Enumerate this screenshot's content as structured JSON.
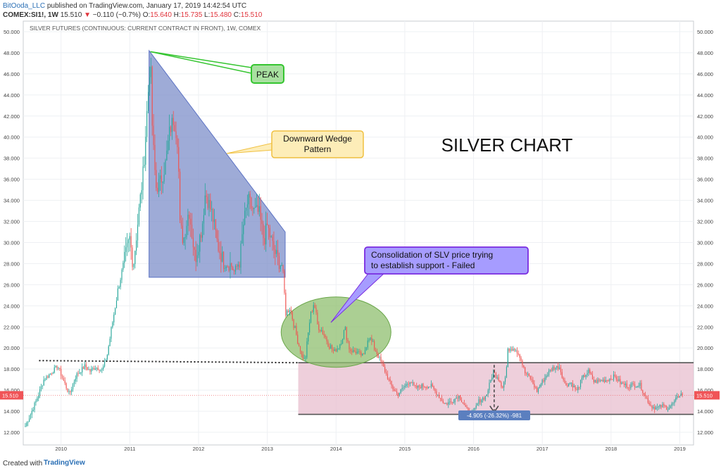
{
  "header": {
    "author": "BitOoda_LLC",
    "published": "published on TradingView.com, January 17, 2019 14:42:54 UTC",
    "symbol": "COMEX:SI1!, 1W",
    "last": "15.510",
    "change": "−0.110 (−0.7%)",
    "open_label": "O:",
    "open": "15.640",
    "high_label": "H:",
    "high": "15.735",
    "low_label": "L:",
    "low": "15.480",
    "close_label": "C:",
    "close": "15.510"
  },
  "footer": {
    "created_with": "Created with",
    "brand": "TradingView"
  },
  "colors": {
    "up": "#26a69a",
    "down": "#ef5350",
    "wedge_fill": "#7d8fc9",
    "zone_fill": "#e8bfcf",
    "circle_fill": "#8fbf6f",
    "peak_border": "#35c530",
    "wedge_note_border": "#f0c040",
    "consolidation_border": "#7a2be0",
    "price_tag": "#f05457",
    "measure_tag": "#5b7fbf"
  },
  "chart_data": {
    "type": "candlestick",
    "title": "SILVER FUTURES (CONTINUOUS: CURRENT CONTRACT IN FRONT), 1W, COMEX",
    "xlabel": "",
    "ylabel": "",
    "x_range": [
      2009.45,
      2019.2
    ],
    "ylim": [
      10.8,
      51.0
    ],
    "y_ticks": [
      "12.000",
      "14.000",
      "16.000",
      "18.000",
      "20.000",
      "22.000",
      "24.000",
      "26.000",
      "28.000",
      "30.000",
      "32.000",
      "34.000",
      "36.000",
      "38.000",
      "40.000",
      "42.000",
      "44.000",
      "46.000",
      "48.000",
      "50.000"
    ],
    "x_ticks": [
      "2010",
      "2011",
      "2012",
      "2013",
      "2014",
      "2015",
      "2016",
      "2017",
      "2018",
      "2019"
    ],
    "current_price": "15.510",
    "price_path": [
      [
        2009.48,
        12.6
      ],
      [
        2009.55,
        13.6
      ],
      [
        2009.65,
        15.2
      ],
      [
        2009.75,
        17.0
      ],
      [
        2009.85,
        17.6
      ],
      [
        2009.95,
        18.3
      ],
      [
        2010.08,
        16.2
      ],
      [
        2010.12,
        15.6
      ],
      [
        2010.22,
        17.4
      ],
      [
        2010.35,
        18.3
      ],
      [
        2010.42,
        17.8
      ],
      [
        2010.5,
        18.2
      ],
      [
        2010.6,
        17.9
      ],
      [
        2010.67,
        19.3
      ],
      [
        2010.75,
        22.5
      ],
      [
        2010.83,
        25.6
      ],
      [
        2010.92,
        28.3
      ],
      [
        2011.0,
        30.4
      ],
      [
        2011.05,
        27.8
      ],
      [
        2011.12,
        32.2
      ],
      [
        2011.2,
        37.0
      ],
      [
        2011.26,
        43.5
      ],
      [
        2011.3,
        47.6
      ],
      [
        2011.33,
        40.2
      ],
      [
        2011.38,
        35.2
      ],
      [
        2011.45,
        35.8
      ],
      [
        2011.52,
        37.5
      ],
      [
        2011.58,
        40.6
      ],
      [
        2011.64,
        41.8
      ],
      [
        2011.7,
        39.5
      ],
      [
        2011.73,
        31.6
      ],
      [
        2011.78,
        30.2
      ],
      [
        2011.86,
        33.2
      ],
      [
        2011.95,
        28.4
      ],
      [
        2012.05,
        31.5
      ],
      [
        2012.1,
        34.8
      ],
      [
        2012.2,
        32.6
      ],
      [
        2012.28,
        29.7
      ],
      [
        2012.38,
        27.9
      ],
      [
        2012.45,
        28.1
      ],
      [
        2012.52,
        27.2
      ],
      [
        2012.6,
        28.3
      ],
      [
        2012.65,
        31.6
      ],
      [
        2012.72,
        34.0
      ],
      [
        2012.8,
        33.0
      ],
      [
        2012.88,
        32.8
      ],
      [
        2012.95,
        30.2
      ],
      [
        2013.0,
        31.6
      ],
      [
        2013.08,
        29.6
      ],
      [
        2013.15,
        28.4
      ],
      [
        2013.22,
        27.8
      ],
      [
        2013.27,
        23.2
      ],
      [
        2013.33,
        23.9
      ],
      [
        2013.4,
        21.8
      ],
      [
        2013.5,
        19.3
      ],
      [
        2013.55,
        18.8
      ],
      [
        2013.62,
        22.8
      ],
      [
        2013.68,
        24.4
      ],
      [
        2013.73,
        22.2
      ],
      [
        2013.8,
        21.6
      ],
      [
        2013.9,
        20.3
      ],
      [
        2013.97,
        19.6
      ],
      [
        2014.05,
        20.3
      ],
      [
        2014.13,
        21.8
      ],
      [
        2014.2,
        19.8
      ],
      [
        2014.3,
        19.6
      ],
      [
        2014.4,
        19.2
      ],
      [
        2014.47,
        21.2
      ],
      [
        2014.52,
        20.5
      ],
      [
        2014.58,
        19.7
      ],
      [
        2014.68,
        18.3
      ],
      [
        2014.75,
        17.2
      ],
      [
        2014.82,
        16.2
      ],
      [
        2014.9,
        15.6
      ],
      [
        2015.0,
        16.4
      ],
      [
        2015.08,
        16.9
      ],
      [
        2015.15,
        16.2
      ],
      [
        2015.25,
        16.4
      ],
      [
        2015.38,
        16.4
      ],
      [
        2015.5,
        15.4
      ],
      [
        2015.58,
        14.7
      ],
      [
        2015.68,
        14.9
      ],
      [
        2015.78,
        15.5
      ],
      [
        2015.85,
        14.8
      ],
      [
        2015.92,
        13.9
      ],
      [
        2016.0,
        13.9
      ],
      [
        2016.08,
        15.0
      ],
      [
        2016.18,
        15.4
      ],
      [
        2016.28,
        17.6
      ],
      [
        2016.35,
        17.3
      ],
      [
        2016.42,
        16.3
      ],
      [
        2016.47,
        17.4
      ],
      [
        2016.5,
        19.8
      ],
      [
        2016.58,
        20.2
      ],
      [
        2016.67,
        19.3
      ],
      [
        2016.75,
        17.6
      ],
      [
        2016.82,
        17.2
      ],
      [
        2016.92,
        15.9
      ],
      [
        2017.0,
        16.8
      ],
      [
        2017.08,
        17.6
      ],
      [
        2017.15,
        18.1
      ],
      [
        2017.25,
        18.2
      ],
      [
        2017.33,
        16.5
      ],
      [
        2017.42,
        16.7
      ],
      [
        2017.5,
        15.9
      ],
      [
        2017.58,
        17.1
      ],
      [
        2017.67,
        17.8
      ],
      [
        2017.75,
        16.8
      ],
      [
        2017.85,
        16.9
      ],
      [
        2017.95,
        17.0
      ],
      [
        2018.05,
        17.3
      ],
      [
        2018.15,
        16.6
      ],
      [
        2018.25,
        16.4
      ],
      [
        2018.33,
        16.5
      ],
      [
        2018.42,
        16.5
      ],
      [
        2018.5,
        15.4
      ],
      [
        2018.58,
        14.5
      ],
      [
        2018.67,
        14.3
      ],
      [
        2018.75,
        14.5
      ],
      [
        2018.83,
        14.3
      ],
      [
        2018.9,
        14.7
      ],
      [
        2019.0,
        15.6
      ]
    ],
    "annotations": {
      "peak": "PEAK",
      "wedge": [
        "Downward Wedge",
        "Pattern"
      ],
      "big_title": "SILVER CHART",
      "consolidation": [
        "Consolidation of SLV price trying",
        "to establish support - Failed"
      ],
      "measure": "-4.905 (-26.32%) -981"
    },
    "levels": {
      "wedge_top": 48.2,
      "wedge_bottom": 26.7,
      "wedge_right_top": 31.0,
      "dotted_support": 18.8,
      "zone_top": 18.6,
      "zone_bottom": 13.7
    }
  }
}
